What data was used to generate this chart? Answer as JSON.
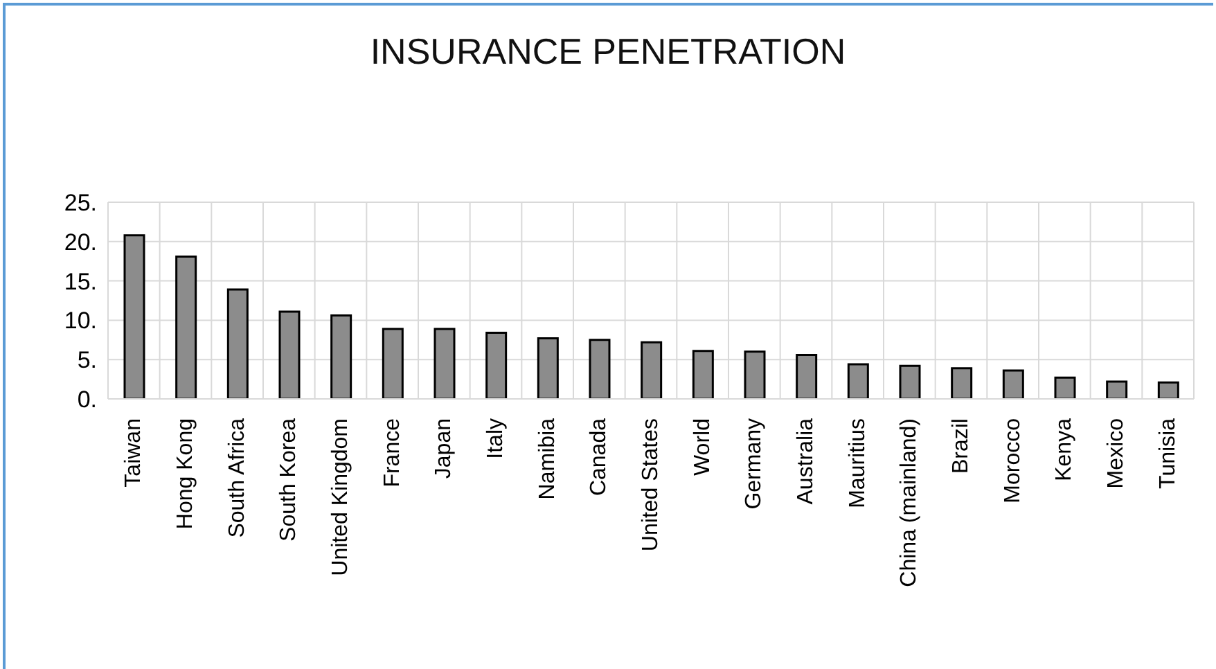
{
  "chart_data": {
    "type": "bar",
    "title": "INSURANCE PENETRATION",
    "categories": [
      "Taiwan",
      "Hong Kong",
      "South Africa",
      "South Korea",
      "United Kingdom",
      "France",
      "Japan",
      "Italy",
      "Namibia",
      "Canada",
      "United States",
      "World",
      "Germany",
      "Australia",
      "Mauritius",
      "China (mainland)",
      "Brazil",
      "Morocco",
      "Kenya",
      "Mexico",
      "Tunisia"
    ],
    "values": [
      20.8,
      18.1,
      13.9,
      11.1,
      10.6,
      8.9,
      8.9,
      8.4,
      7.7,
      7.5,
      7.2,
      6.1,
      6.0,
      5.6,
      4.4,
      4.2,
      3.9,
      3.6,
      2.7,
      2.2,
      2.1
    ],
    "color": "#8c8c8c",
    "ylim": [
      0,
      25
    ],
    "yticks": [
      {
        "value": 0,
        "label": "0."
      },
      {
        "value": 5,
        "label": "5."
      },
      {
        "value": 10,
        "label": "10."
      },
      {
        "value": 15,
        "label": "15."
      },
      {
        "value": 20,
        "label": "20."
      },
      {
        "value": 25,
        "label": "25."
      }
    ],
    "grid": true
  }
}
